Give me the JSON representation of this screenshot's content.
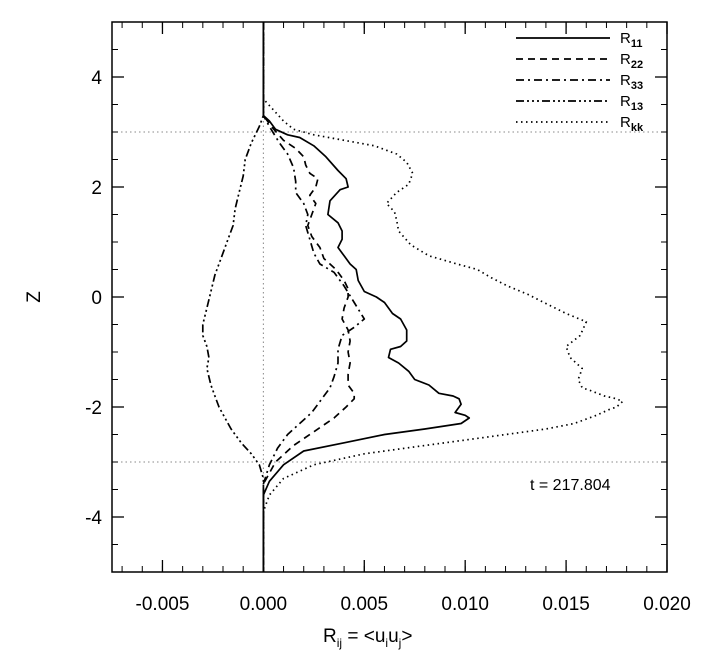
{
  "chart_data": {
    "type": "line",
    "xlabel_main": "R",
    "xlabel_sub": "ij",
    "xlabel_rest": " = <u",
    "xlabel_sub2": "i",
    "xlabel_mid": "u",
    "xlabel_sub3": "j",
    "xlabel_end": ">",
    "ylabel": "Z",
    "xlim": [
      -0.0075,
      0.02
    ],
    "ylim": [
      -5,
      5
    ],
    "x_ticks": [
      {
        "v": -0.005,
        "label": "-0.005"
      },
      {
        "v": 0.0,
        "label": "0.000"
      },
      {
        "v": 0.005,
        "label": "0.005"
      },
      {
        "v": 0.01,
        "label": "0.010"
      },
      {
        "v": 0.015,
        "label": "0.015"
      },
      {
        "v": 0.02,
        "label": "0.020"
      }
    ],
    "y_ticks": [
      {
        "v": -4,
        "label": "-4"
      },
      {
        "v": -2,
        "label": "-2"
      },
      {
        "v": 0,
        "label": "0"
      },
      {
        "v": 2,
        "label": "2"
      },
      {
        "v": 4,
        "label": "4"
      }
    ],
    "annotation": "t = 217.804",
    "reference_lines": {
      "horizontal": [
        3.0,
        -3.0
      ],
      "vertical": [
        0.0
      ]
    },
    "series": [
      {
        "name": "R",
        "sub": "11",
        "dash": "",
        "points": [
          [
            0.0,
            5.0
          ],
          [
            0.0,
            4.0
          ],
          [
            0.0,
            3.3
          ],
          [
            0.0003,
            3.2
          ],
          [
            0.0006,
            3.05
          ],
          [
            0.0012,
            2.95
          ],
          [
            0.0018,
            2.9
          ],
          [
            0.0025,
            2.75
          ],
          [
            0.0031,
            2.55
          ],
          [
            0.0037,
            2.3
          ],
          [
            0.0041,
            2.15
          ],
          [
            0.0042,
            2.0
          ],
          [
            0.0038,
            1.95
          ],
          [
            0.0033,
            1.75
          ],
          [
            0.0032,
            1.5
          ],
          [
            0.0037,
            1.35
          ],
          [
            0.0039,
            1.2
          ],
          [
            0.0039,
            1.05
          ],
          [
            0.0037,
            0.9
          ],
          [
            0.004,
            0.75
          ],
          [
            0.0043,
            0.6
          ],
          [
            0.0046,
            0.5
          ],
          [
            0.0047,
            0.3
          ],
          [
            0.005,
            0.1
          ],
          [
            0.0056,
            0.0
          ],
          [
            0.006,
            -0.1
          ],
          [
            0.0064,
            -0.3
          ],
          [
            0.0068,
            -0.4
          ],
          [
            0.0071,
            -0.6
          ],
          [
            0.0071,
            -0.8
          ],
          [
            0.0068,
            -0.9
          ],
          [
            0.0063,
            -0.95
          ],
          [
            0.0062,
            -1.1
          ],
          [
            0.0067,
            -1.2
          ],
          [
            0.0072,
            -1.35
          ],
          [
            0.0075,
            -1.5
          ],
          [
            0.0082,
            -1.6
          ],
          [
            0.0087,
            -1.75
          ],
          [
            0.0094,
            -1.8
          ],
          [
            0.0097,
            -1.85
          ],
          [
            0.0098,
            -1.95
          ],
          [
            0.0095,
            -2.1
          ],
          [
            0.01,
            -2.15
          ],
          [
            0.0102,
            -2.2
          ],
          [
            0.0098,
            -2.3
          ],
          [
            0.008,
            -2.4
          ],
          [
            0.006,
            -2.5
          ],
          [
            0.004,
            -2.65
          ],
          [
            0.002,
            -2.8
          ],
          [
            0.001,
            -3.05
          ],
          [
            0.0003,
            -3.35
          ],
          [
            0.0,
            -3.6
          ],
          [
            0.0,
            -5.0
          ]
        ]
      },
      {
        "name": "R",
        "sub": "22",
        "dash": "7,5",
        "points": [
          [
            0.0,
            5.0
          ],
          [
            0.0,
            3.3
          ],
          [
            0.0004,
            3.1
          ],
          [
            0.001,
            2.85
          ],
          [
            0.0016,
            2.7
          ],
          [
            0.002,
            2.55
          ],
          [
            0.0021,
            2.4
          ],
          [
            0.0023,
            2.25
          ],
          [
            0.0027,
            2.15
          ],
          [
            0.0026,
            2.0
          ],
          [
            0.0023,
            1.85
          ],
          [
            0.0026,
            1.7
          ],
          [
            0.0024,
            1.5
          ],
          [
            0.0022,
            1.3
          ],
          [
            0.0024,
            1.1
          ],
          [
            0.0028,
            0.9
          ],
          [
            0.003,
            0.7
          ],
          [
            0.0036,
            0.5
          ],
          [
            0.004,
            0.3
          ],
          [
            0.0042,
            0.15
          ],
          [
            0.0042,
            0.0
          ],
          [
            0.004,
            -0.2
          ],
          [
            0.0039,
            -0.4
          ],
          [
            0.0042,
            -0.6
          ],
          [
            0.0043,
            -0.8
          ],
          [
            0.0042,
            -1.0
          ],
          [
            0.0043,
            -1.2
          ],
          [
            0.0042,
            -1.4
          ],
          [
            0.0042,
            -1.6
          ],
          [
            0.0045,
            -1.75
          ],
          [
            0.0045,
            -1.85
          ],
          [
            0.0041,
            -2.0
          ],
          [
            0.0035,
            -2.2
          ],
          [
            0.0025,
            -2.45
          ],
          [
            0.0015,
            -2.7
          ],
          [
            0.0006,
            -3.0
          ],
          [
            0.0,
            -3.4
          ],
          [
            0.0,
            -5.0
          ]
        ]
      },
      {
        "name": "R",
        "sub": "33",
        "dash": "8,4,2,4",
        "points": [
          [
            0.0,
            5.0
          ],
          [
            0.0,
            3.3
          ],
          [
            0.0003,
            3.1
          ],
          [
            0.0008,
            2.8
          ],
          [
            0.0012,
            2.6
          ],
          [
            0.0015,
            2.35
          ],
          [
            0.0016,
            2.1
          ],
          [
            0.0016,
            1.9
          ],
          [
            0.002,
            1.7
          ],
          [
            0.0022,
            1.5
          ],
          [
            0.0021,
            1.3
          ],
          [
            0.0023,
            1.05
          ],
          [
            0.0025,
            0.8
          ],
          [
            0.0028,
            0.6
          ],
          [
            0.0035,
            0.45
          ],
          [
            0.004,
            0.2
          ],
          [
            0.0045,
            -0.1
          ],
          [
            0.005,
            -0.4
          ],
          [
            0.0045,
            -0.55
          ],
          [
            0.0039,
            -0.7
          ],
          [
            0.0037,
            -0.95
          ],
          [
            0.0037,
            -1.2
          ],
          [
            0.0035,
            -1.45
          ],
          [
            0.0033,
            -1.65
          ],
          [
            0.0028,
            -1.9
          ],
          [
            0.0024,
            -2.1
          ],
          [
            0.0018,
            -2.3
          ],
          [
            0.0012,
            -2.5
          ],
          [
            0.0007,
            -2.75
          ],
          [
            0.0003,
            -3.05
          ],
          [
            0.0,
            -3.4
          ],
          [
            0.0,
            -5.0
          ]
        ]
      },
      {
        "name": "R",
        "sub": "13",
        "dash": "8,3,2,3,2,3,2,3",
        "points": [
          [
            0.0,
            5.0
          ],
          [
            0.0,
            3.3
          ],
          [
            -0.0002,
            3.1
          ],
          [
            -0.0006,
            2.8
          ],
          [
            -0.0009,
            2.5
          ],
          [
            -0.001,
            2.2
          ],
          [
            -0.0012,
            1.9
          ],
          [
            -0.0014,
            1.6
          ],
          [
            -0.0015,
            1.3
          ],
          [
            -0.0018,
            1.0
          ],
          [
            -0.0021,
            0.7
          ],
          [
            -0.0024,
            0.4
          ],
          [
            -0.0026,
            0.1
          ],
          [
            -0.0028,
            -0.2
          ],
          [
            -0.003,
            -0.5
          ],
          [
            -0.003,
            -0.7
          ],
          [
            -0.0028,
            -0.9
          ],
          [
            -0.0027,
            -1.1
          ],
          [
            -0.0028,
            -1.3
          ],
          [
            -0.0026,
            -1.6
          ],
          [
            -0.0024,
            -1.8
          ],
          [
            -0.0022,
            -2.0
          ],
          [
            -0.0019,
            -2.2
          ],
          [
            -0.0016,
            -2.4
          ],
          [
            -0.0011,
            -2.65
          ],
          [
            -0.0006,
            -2.85
          ],
          [
            -0.0002,
            -3.05
          ],
          [
            0.0,
            -3.3
          ],
          [
            0.0,
            -5.0
          ]
        ]
      },
      {
        "name": "R",
        "sub": "kk",
        "dash": "1.5,3.5",
        "points": [
          [
            0.0,
            5.0
          ],
          [
            0.0,
            3.6
          ],
          [
            0.0005,
            3.4
          ],
          [
            0.001,
            3.2
          ],
          [
            0.0015,
            3.05
          ],
          [
            0.0025,
            2.95
          ],
          [
            0.004,
            2.85
          ],
          [
            0.0055,
            2.75
          ],
          [
            0.0066,
            2.6
          ],
          [
            0.0071,
            2.45
          ],
          [
            0.0074,
            2.25
          ],
          [
            0.0072,
            2.05
          ],
          [
            0.0066,
            1.9
          ],
          [
            0.0061,
            1.7
          ],
          [
            0.0065,
            1.55
          ],
          [
            0.0066,
            1.4
          ],
          [
            0.0067,
            1.2
          ],
          [
            0.0073,
            0.95
          ],
          [
            0.0082,
            0.75
          ],
          [
            0.0096,
            0.6
          ],
          [
            0.0106,
            0.5
          ],
          [
            0.0113,
            0.35
          ],
          [
            0.0121,
            0.2
          ],
          [
            0.0131,
            0.05
          ],
          [
            0.0139,
            -0.1
          ],
          [
            0.015,
            -0.3
          ],
          [
            0.016,
            -0.45
          ],
          [
            0.0157,
            -0.7
          ],
          [
            0.015,
            -0.9
          ],
          [
            0.0152,
            -1.1
          ],
          [
            0.0158,
            -1.3
          ],
          [
            0.0156,
            -1.5
          ],
          [
            0.0158,
            -1.65
          ],
          [
            0.0162,
            -1.7
          ],
          [
            0.0169,
            -1.8
          ],
          [
            0.0175,
            -1.85
          ],
          [
            0.0178,
            -1.9
          ],
          [
            0.0175,
            -2.0
          ],
          [
            0.0171,
            -2.05
          ],
          [
            0.0165,
            -2.15
          ],
          [
            0.0154,
            -2.3
          ],
          [
            0.014,
            -2.4
          ],
          [
            0.011,
            -2.55
          ],
          [
            0.008,
            -2.7
          ],
          [
            0.005,
            -2.85
          ],
          [
            0.0025,
            -3.05
          ],
          [
            0.001,
            -3.3
          ],
          [
            0.0003,
            -3.6
          ],
          [
            0.0,
            -3.9
          ],
          [
            0.0,
            -5.0
          ]
        ]
      }
    ]
  }
}
